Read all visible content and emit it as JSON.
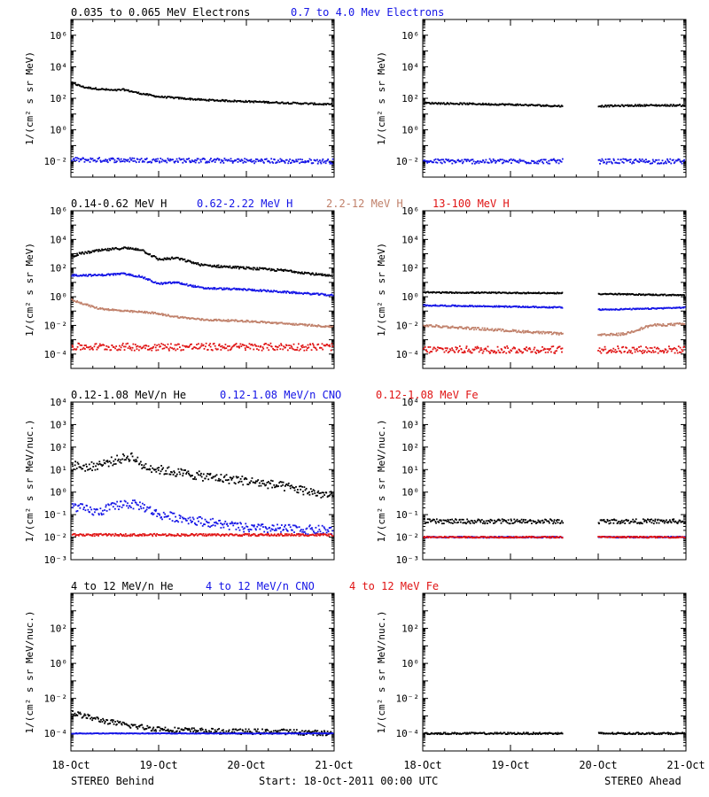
{
  "colors": {
    "black": "#000000",
    "blue": "#1414e6",
    "brown": "#c0806a",
    "red": "#e01414"
  },
  "footer": {
    "left": "STEREO Behind",
    "center": "Start: 18-Oct-2011 00:00 UTC",
    "right": "STEREO Ahead"
  },
  "x_axis": {
    "tick_labels": [
      "18-Oct",
      "19-Oct",
      "20-Oct",
      "21-Oct"
    ],
    "range_days": [
      0,
      3
    ],
    "data_gap_ahead_days": [
      1.6,
      2.0
    ]
  },
  "chart_data": [
    {
      "type": "scatter",
      "panel": "electrons",
      "ylabel": "1/(cm² s sr MeV)",
      "ylim_log10": [
        -3,
        7
      ],
      "y_tick_exponents": [
        -2,
        0,
        2,
        4,
        6
      ],
      "legend": [
        {
          "label": "0.035 to 0.065 MeV Electrons",
          "color": "black"
        },
        {
          "label": "0.7 to 4.0 Mev Electrons",
          "color": "blue"
        }
      ],
      "behind": [
        {
          "name": "0.035 to 0.065 MeV Electrons",
          "color": "black",
          "x_days": [
            0,
            0.15,
            0.3,
            0.5,
            0.6,
            0.8,
            1.0,
            1.5,
            2.0,
            2.5,
            3.0
          ],
          "log10_flux": [
            3.0,
            2.7,
            2.6,
            2.5,
            2.55,
            2.3,
            2.1,
            1.9,
            1.8,
            1.7,
            1.6
          ],
          "scatter": 0.05
        },
        {
          "name": "0.7 to 4.0 Mev Electrons",
          "color": "blue",
          "x_days": [
            0,
            3.0
          ],
          "log10_flux": [
            -1.9,
            -2.0
          ],
          "scatter": 0.15
        }
      ],
      "ahead": [
        {
          "name": "0.035 to 0.065 MeV Electrons",
          "color": "black",
          "x_days": [
            0,
            1.0,
            1.6,
            2.0,
            2.5,
            3.0
          ],
          "log10_flux": [
            1.7,
            1.6,
            1.5,
            1.5,
            1.55,
            1.55
          ],
          "scatter": 0.05
        },
        {
          "name": "0.7 to 4.0 Mev Electrons",
          "color": "blue",
          "x_days": [
            0,
            3.0
          ],
          "log10_flux": [
            -2.0,
            -2.0
          ],
          "scatter": 0.15
        }
      ]
    },
    {
      "type": "scatter",
      "panel": "protons",
      "ylabel": "1/(cm² s sr MeV)",
      "ylim_log10": [
        -5,
        6
      ],
      "y_tick_exponents": [
        -4,
        -2,
        0,
        2,
        4,
        6
      ],
      "legend": [
        {
          "label": "0.14-0.62 MeV H",
          "color": "black"
        },
        {
          "label": "0.62-2.22 MeV H",
          "color": "blue"
        },
        {
          "label": "2.2-12 MeV H",
          "color": "brown"
        },
        {
          "label": "13-100 MeV H",
          "color": "red"
        }
      ],
      "behind": [
        {
          "name": "0.14-0.62 MeV H",
          "color": "black",
          "x_days": [
            0,
            0.1,
            0.3,
            0.6,
            0.8,
            1.0,
            1.2,
            1.5,
            2.0,
            2.5,
            3.0
          ],
          "log10_flux": [
            2.8,
            3.0,
            3.2,
            3.4,
            3.3,
            2.6,
            2.7,
            2.2,
            2.0,
            1.8,
            1.4
          ],
          "scatter": 0.08
        },
        {
          "name": "0.62-2.22 MeV H",
          "color": "blue",
          "x_days": [
            0,
            0.3,
            0.6,
            0.8,
            1.0,
            1.2,
            1.5,
            2.0,
            2.5,
            3.0
          ],
          "log10_flux": [
            1.5,
            1.5,
            1.6,
            1.4,
            0.9,
            1.0,
            0.6,
            0.5,
            0.3,
            0.1
          ],
          "scatter": 0.06
        },
        {
          "name": "2.2-12 MeV H",
          "color": "brown",
          "x_days": [
            0,
            0.3,
            0.6,
            0.9,
            1.2,
            1.5,
            2.0,
            2.5,
            3.0
          ],
          "log10_flux": [
            -0.2,
            -0.8,
            -1.0,
            -1.1,
            -1.4,
            -1.6,
            -1.7,
            -1.9,
            -2.1
          ],
          "scatter": 0.06
        },
        {
          "name": "13-100 MeV H",
          "color": "red",
          "x_days": [
            0,
            3.0
          ],
          "log10_flux": [
            -3.5,
            -3.5
          ],
          "scatter": 0.25
        }
      ],
      "ahead": [
        {
          "name": "0.14-0.62 MeV H",
          "color": "black",
          "x_days": [
            0,
            1.6,
            2.0,
            3.0
          ],
          "log10_flux": [
            0.3,
            0.25,
            0.2,
            0.1
          ],
          "scatter": 0.04
        },
        {
          "name": "0.62-2.22 MeV H",
          "color": "blue",
          "x_days": [
            0,
            1.6,
            2.0,
            2.5,
            3.0
          ],
          "log10_flux": [
            -0.6,
            -0.75,
            -0.9,
            -0.85,
            -0.75
          ],
          "scatter": 0.04
        },
        {
          "name": "2.2-12 MeV H",
          "color": "brown",
          "x_days": [
            0,
            0.8,
            1.6,
            2.0,
            2.3,
            2.6,
            3.0
          ],
          "log10_flux": [
            -2.0,
            -2.3,
            -2.6,
            -2.7,
            -2.6,
            -2.0,
            -1.9
          ],
          "scatter": 0.08
        },
        {
          "name": "13-100 MeV H",
          "color": "red",
          "x_days": [
            0,
            3.0
          ],
          "log10_flux": [
            -3.7,
            -3.7
          ],
          "scatter": 0.25
        }
      ]
    },
    {
      "type": "scatter",
      "panel": "ions-low",
      "ylabel": "1/(cm² s sr MeV/nuc.)",
      "ylim_log10": [
        -3,
        4
      ],
      "y_tick_exponents": [
        -3,
        -2,
        -1,
        0,
        1,
        2,
        3,
        4
      ],
      "y_tick_labels": [
        "10⁻³",
        "10⁻²",
        "10⁻¹",
        "10⁰",
        "10¹",
        "10²",
        "10³",
        "10⁴"
      ],
      "legend": [
        {
          "label": "0.12-1.08 MeV/n He",
          "color": "black"
        },
        {
          "label": "0.12-1.08 MeV/n CNO",
          "color": "blue"
        },
        {
          "label": "0.12-1.08 MeV Fe",
          "color": "red"
        }
      ],
      "behind": [
        {
          "name": "0.12-1.08 MeV/n He",
          "color": "black",
          "x_days": [
            0,
            0.2,
            0.4,
            0.7,
            0.8,
            1.0,
            1.5,
            2.0,
            2.5,
            3.0
          ],
          "log10_flux": [
            1.2,
            1.1,
            1.3,
            1.6,
            1.2,
            1.0,
            0.7,
            0.5,
            0.2,
            -0.2
          ],
          "scatter": 0.2
        },
        {
          "name": "0.12-1.08 MeV/n CNO",
          "color": "blue",
          "x_days": [
            0,
            0.3,
            0.6,
            0.8,
            1.0,
            1.5,
            2.0,
            3.0
          ],
          "log10_flux": [
            -0.6,
            -0.9,
            -0.5,
            -0.6,
            -1.0,
            -1.3,
            -1.6,
            -1.7
          ],
          "scatter": 0.2
        },
        {
          "name": "0.12-1.08 MeV Fe",
          "color": "red",
          "x_days": [
            0,
            3.0
          ],
          "log10_flux": [
            -1.9,
            -1.9
          ],
          "scatter": 0.05
        }
      ],
      "ahead": [
        {
          "name": "0.12-1.08 MeV/n He",
          "color": "black",
          "x_days": [
            0,
            3.0
          ],
          "log10_flux": [
            -1.3,
            -1.3
          ],
          "scatter": 0.1
        },
        {
          "name": "0.12-1.08 MeV/n CNO",
          "color": "blue",
          "x_days": [
            0,
            3.0
          ],
          "log10_flux": [
            -2.0,
            -2.0
          ],
          "scatter": 0.03
        },
        {
          "name": "0.12-1.08 MeV Fe",
          "color": "red",
          "x_days": [
            0,
            3.0
          ],
          "log10_flux": [
            -2.0,
            -2.0
          ],
          "scatter": 0.03
        }
      ]
    },
    {
      "type": "scatter",
      "panel": "ions-high",
      "ylabel": "1/(cm² s sr MeV/nuc.)",
      "ylim_log10": [
        -5,
        4
      ],
      "y_tick_exponents": [
        -4,
        -2,
        0,
        2
      ],
      "legend": [
        {
          "label": "4 to 12 MeV/n He",
          "color": "black"
        },
        {
          "label": "4 to 12 MeV/n CNO",
          "color": "blue"
        },
        {
          "label": "4 to 12 MeV Fe",
          "color": "red"
        }
      ],
      "behind": [
        {
          "name": "4 to 12 MeV/n He",
          "color": "black",
          "x_days": [
            0,
            0.3,
            0.6,
            0.9,
            1.2,
            1.8,
            2.4,
            3.0
          ],
          "log10_flux": [
            -2.8,
            -3.2,
            -3.5,
            -3.7,
            -3.8,
            -3.9,
            -3.9,
            -4.0
          ],
          "scatter": 0.15
        },
        {
          "name": "4 to 12 MeV/n CNO",
          "color": "blue",
          "x_days": [
            0,
            3.0
          ],
          "log10_flux": [
            -4.0,
            -4.0
          ],
          "scatter": 0.02
        }
      ],
      "ahead": [
        {
          "name": "4 to 12 MeV/n He",
          "color": "black",
          "x_days": [
            0,
            3.0
          ],
          "log10_flux": [
            -4.0,
            -4.0
          ],
          "scatter": 0.05
        }
      ]
    }
  ]
}
